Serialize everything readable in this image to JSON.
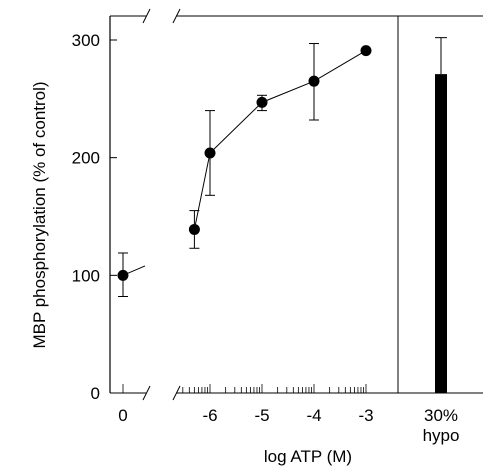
{
  "chart_data": {
    "type": "scatter",
    "xlabel": "log ATP (M)",
    "ylabel": "MBP phosphorylation (% of control)",
    "ylim": [
      0,
      300
    ],
    "y_ticks": [
      "0",
      "100",
      "200",
      "300"
    ],
    "x_ticks": [
      "0",
      "-6",
      "-5",
      "-4",
      "-3"
    ],
    "axis_break": true,
    "series": [
      {
        "points": [
          {
            "x_label": "0",
            "x": null,
            "y": 100,
            "err_low": 82,
            "err_high": 119
          },
          {
            "x": -6.3,
            "y": 139,
            "err_low": 123,
            "err_high": 155
          },
          {
            "x": -6.0,
            "y": 204,
            "err_low": 168,
            "err_high": 240
          },
          {
            "x": -5.0,
            "y": 247,
            "err_low": 240,
            "err_high": 253
          },
          {
            "x": -4.0,
            "y": 265,
            "err_low": 232,
            "err_high": 297
          },
          {
            "x": -3.0,
            "y": 291,
            "err_low": 291,
            "err_high": 291
          }
        ]
      }
    ],
    "bar": {
      "category_lines": [
        "30%",
        "hypo"
      ],
      "value": 271,
      "err_low": 271,
      "err_high": 302,
      "color": "#000000"
    }
  }
}
